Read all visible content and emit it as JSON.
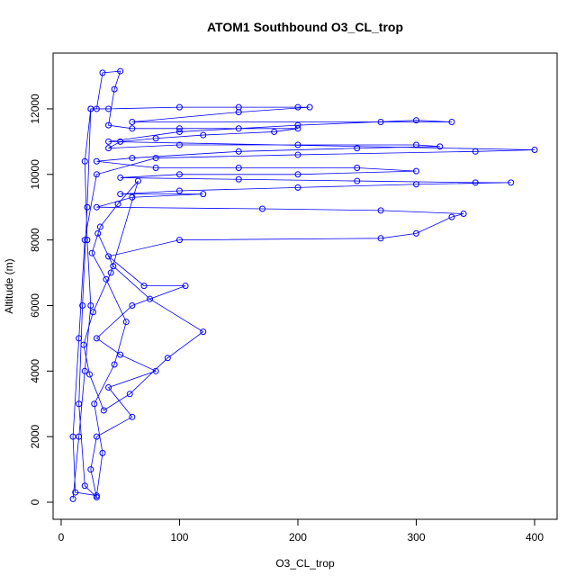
{
  "chart_data": {
    "type": "scatter",
    "title": "ATOM1 Southbound O3_CL_trop",
    "x_label": "O3_CL_trop",
    "y_label": "Altitude (m)",
    "color": "#0000ff",
    "connect": true,
    "xlim": [
      -6.8,
      419
    ],
    "ylim": [
      -522,
      13701
    ],
    "xticks": [
      0,
      100,
      200,
      300,
      400
    ],
    "yticks": [
      0,
      2000,
      4000,
      6000,
      8000,
      10000,
      12000
    ],
    "x": [
      10,
      15,
      20,
      25,
      22,
      20,
      25,
      30,
      35,
      50,
      45,
      40,
      60,
      100,
      150,
      200,
      180,
      120,
      80,
      50,
      40,
      100,
      200,
      300,
      320,
      250,
      150,
      60,
      30,
      80,
      150,
      250,
      300,
      200,
      100,
      50,
      150,
      250,
      350,
      380,
      300,
      200,
      100,
      50,
      120,
      60,
      30,
      170,
      270,
      340,
      330,
      300,
      270,
      100,
      40,
      70,
      105,
      60,
      30,
      50,
      80,
      40,
      60,
      30,
      25,
      30,
      20,
      15,
      18,
      22,
      25,
      40,
      100,
      150,
      200,
      210,
      150,
      60,
      270,
      330,
      300,
      200,
      100,
      40,
      400,
      350,
      200,
      80,
      30,
      20,
      15,
      10,
      12,
      30,
      35,
      28,
      45,
      55,
      38,
      26,
      33,
      48,
      65,
      42,
      27,
      19,
      24,
      36,
      58,
      90,
      120,
      75,
      44,
      31
    ],
    "values": [
      100,
      2000,
      4000,
      6000,
      8000,
      10400,
      12000,
      12000,
      13100,
      13150,
      12600,
      11500,
      11400,
      11400,
      11400,
      11400,
      11300,
      11200,
      11100,
      11000,
      10800,
      10900,
      10900,
      10900,
      10850,
      10800,
      10700,
      10500,
      10400,
      10200,
      10200,
      10200,
      10100,
      10000,
      10000,
      9900,
      9850,
      9800,
      9750,
      9750,
      9700,
      9600,
      9500,
      9400,
      9400,
      9300,
      9000,
      8950,
      8900,
      8800,
      8700,
      8200,
      8050,
      8000,
      7500,
      6600,
      6600,
      6000,
      5000,
      4500,
      4000,
      3500,
      2600,
      2000,
      1000,
      150,
      500,
      3000,
      6000,
      9000,
      12000,
      12000,
      12050,
      12050,
      12050,
      12050,
      11900,
      11600,
      11600,
      11600,
      11650,
      11500,
      11300,
      11000,
      10750,
      10700,
      10600,
      10500,
      10000,
      8000,
      5000,
      2000,
      300,
      200,
      1500,
      3000,
      4200,
      5500,
      6800,
      7600,
      8400,
      9100,
      9800,
      7000,
      5800,
      4800,
      3900,
      2800,
      3300,
      4400,
      5200,
      6200,
      7200,
      8200
    ]
  }
}
